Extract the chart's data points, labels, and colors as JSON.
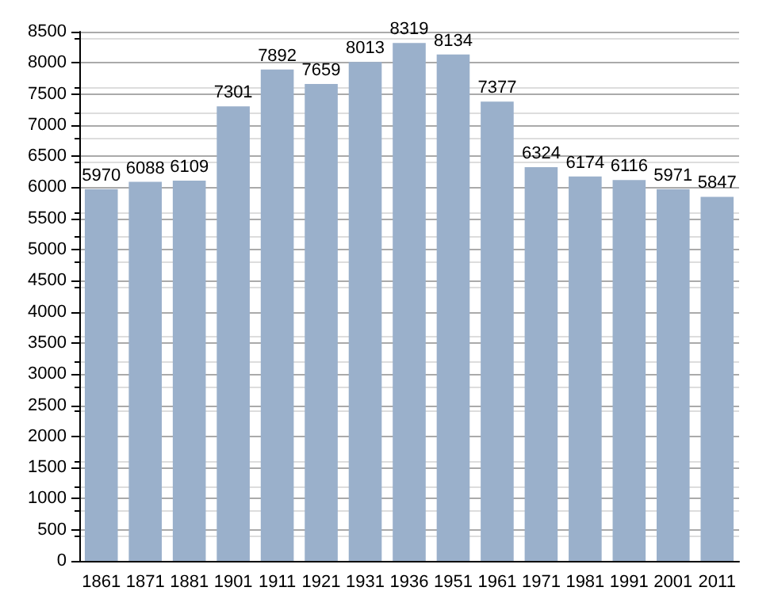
{
  "chart_data": {
    "type": "bar",
    "categories": [
      "1861",
      "1871",
      "1881",
      "1901",
      "1911",
      "1921",
      "1931",
      "1936",
      "1951",
      "1961",
      "1971",
      "1981",
      "1991",
      "2001",
      "2011"
    ],
    "values": [
      5970,
      6088,
      6109,
      7301,
      7892,
      7659,
      8013,
      8319,
      8134,
      7377,
      6324,
      6174,
      6116,
      5971,
      5847
    ],
    "color": "#9ab0cb",
    "ylim": [
      0,
      8500
    ],
    "yticks": [
      0,
      500,
      1000,
      1500,
      2000,
      2500,
      3000,
      3500,
      4000,
      4500,
      5000,
      5500,
      6000,
      6500,
      7000,
      7500,
      8000,
      8500
    ],
    "grid": "y",
    "data_labels": true
  }
}
